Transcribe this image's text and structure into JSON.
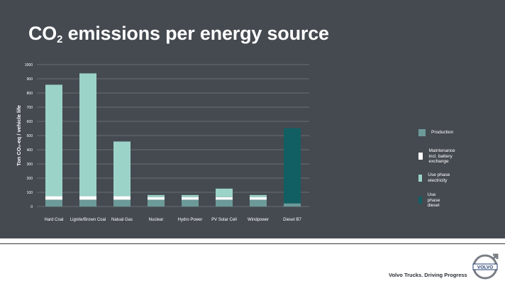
{
  "title": {
    "main": "CO",
    "sub": "2",
    "rest": " emissions per energy source"
  },
  "footer": {
    "tagline": "Volvo Trucks. Driving Progress",
    "logo_text": "VOLVO"
  },
  "colors": {
    "background": "#454a51",
    "production": "#6b9a99",
    "maintenance": "#ffffff",
    "use_phase_electricity": "#9cd3c8",
    "use_phase_diesel": "#115f62",
    "grid": "#8a8f95"
  },
  "chart_data": {
    "type": "bar",
    "stacked": true,
    "ylabel": "Ton CO₂-eq / vehicle life",
    "ylim": [
      0,
      1000
    ],
    "yticks": [
      0,
      100,
      200,
      300,
      400,
      500,
      600,
      700,
      800,
      900,
      1000
    ],
    "grid": true,
    "legend_position": "right",
    "categories": [
      "Hard Coal",
      "Lignite/Brown Coal",
      "Natual Gas",
      "Nuclear",
      "Hydro Power",
      "PV Solar Cell",
      "Windpower",
      "Diesel B7"
    ],
    "series": [
      {
        "name": "Production",
        "color": "#6b9a99",
        "values": [
          48,
          48,
          48,
          48,
          48,
          48,
          48,
          22
        ]
      },
      {
        "name": "Maintenance\nincl. battery exchange",
        "color": "#ffffff",
        "values": [
          25,
          25,
          25,
          18,
          18,
          18,
          18,
          0
        ]
      },
      {
        "name": "Use phase electricity",
        "color": "#9cd3c8",
        "values": [
          785,
          865,
          385,
          15,
          15,
          60,
          15,
          0
        ]
      },
      {
        "name": "Use phase diesel",
        "color": "#115f62",
        "values": [
          0,
          0,
          0,
          0,
          0,
          0,
          0,
          530
        ]
      }
    ]
  }
}
